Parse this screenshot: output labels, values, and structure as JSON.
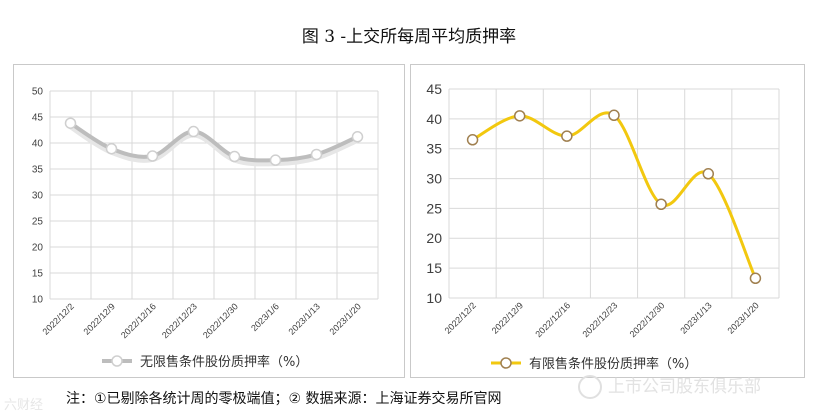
{
  "figure_title": "图 3 -上交所每周平均质押率",
  "note": "注：①已剔除各统计周的零极端值；② 数据来源：上海证券交易所官网",
  "watermarks": {
    "left": "六财经",
    "right": "上市公司股东俱乐部"
  },
  "chart_data": [
    {
      "type": "line",
      "title": "",
      "categories": [
        "2022/12/2",
        "2022/12/9",
        "2022/12/16",
        "2022/12/23",
        "2022/12/30",
        "2023/1/6",
        "2023/1/13",
        "2023/1/20"
      ],
      "series": [
        {
          "name": "无限售条件股份质押率（%）",
          "values": [
            43.8,
            38.9,
            37.5,
            42.2,
            37.4,
            36.7,
            37.8,
            41.2
          ]
        }
      ],
      "ylim": [
        10,
        50
      ],
      "yticks": [
        10,
        15,
        20,
        25,
        30,
        35,
        40,
        45,
        50
      ],
      "grid": true,
      "legend": "bottom",
      "color": "#bdbdbd"
    },
    {
      "type": "line",
      "title": "",
      "categories": [
        "2022/12/2",
        "2022/12/9",
        "2022/12/16",
        "2022/12/23",
        "2022/12/30",
        "2023/1/13",
        "2023/1/20"
      ],
      "series": [
        {
          "name": "有限售条件股份质押率（%）",
          "values": [
            36.5,
            40.5,
            37.1,
            40.6,
            25.7,
            30.8,
            13.3
          ]
        }
      ],
      "ylim": [
        10,
        45
      ],
      "yticks": [
        10,
        15,
        20,
        25,
        30,
        35,
        40,
        45
      ],
      "grid": true,
      "legend": "bottom",
      "color": "#f2c80f"
    }
  ]
}
